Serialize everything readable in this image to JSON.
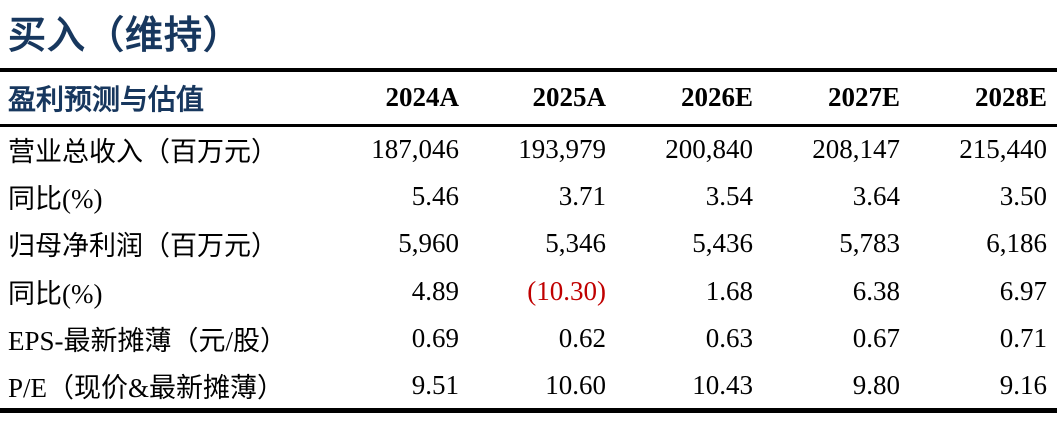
{
  "title": "买入（维持）",
  "colors": {
    "accent_navy": "#17375E",
    "negative_red": "#C00000",
    "rule_black": "#000000"
  },
  "table": {
    "header": {
      "label": "盈利预测与估值",
      "years": [
        "2024A",
        "2025A",
        "2026E",
        "2027E",
        "2028E"
      ]
    },
    "rows": [
      {
        "label": "营业总收入（百万元）",
        "values": [
          "187,046",
          "193,979",
          "200,840",
          "208,147",
          "215,440"
        ]
      },
      {
        "label": "同比(%)",
        "values": [
          "5.46",
          "3.71",
          "3.54",
          "3.64",
          "3.50"
        ]
      },
      {
        "label": "归母净利润（百万元）",
        "values": [
          "5,960",
          "5,346",
          "5,436",
          "5,783",
          "6,186"
        ]
      },
      {
        "label": "同比(%)",
        "values": [
          "4.89",
          "(10.30)",
          "1.68",
          "6.38",
          "6.97"
        ],
        "negative_value_index": 1
      },
      {
        "label": "EPS-最新摊薄（元/股）",
        "values": [
          "0.69",
          "0.62",
          "0.63",
          "0.67",
          "0.71"
        ]
      },
      {
        "label": "P/E（现价&最新摊薄）",
        "values": [
          "9.51",
          "10.60",
          "10.43",
          "9.80",
          "9.16"
        ]
      }
    ]
  }
}
